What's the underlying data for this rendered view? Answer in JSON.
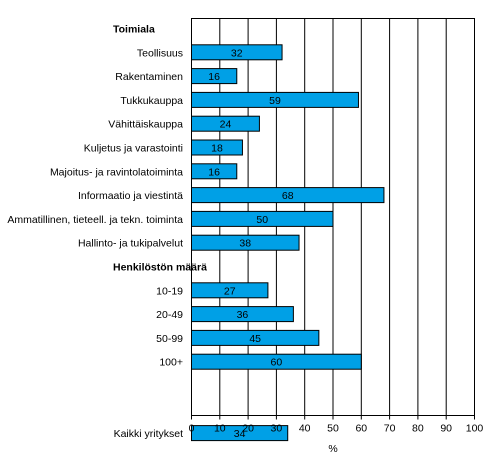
{
  "chart_data": {
    "type": "bar",
    "orientation": "horizontal",
    "xlabel": "%",
    "xlim": [
      0,
      100
    ],
    "xticks": [
      0,
      10,
      20,
      30,
      40,
      50,
      60,
      70,
      80,
      90,
      100
    ],
    "grid": "vertical lines",
    "bar_color": "#00a0e6",
    "groups": [
      {
        "header": "Toimiala",
        "categories": [
          "Teollisuus",
          "Rakentaminen",
          "Tukkukauppa",
          "Vähittäiskauppa",
          "Kuljetus ja varastointi",
          "Majoitus- ja ravintolatoiminta",
          "Informaatio ja viestintä",
          "Ammatillinen, tieteell. ja tekn. toiminta",
          "Hallinto- ja tukipalvelut"
        ],
        "values": [
          32,
          16,
          59,
          24,
          18,
          16,
          68,
          50,
          38
        ]
      },
      {
        "header": "Henkilöstön määrä",
        "categories": [
          "10-19",
          "20-49",
          "50-99",
          "100+"
        ],
        "values": [
          27,
          36,
          45,
          60
        ]
      },
      {
        "header": "",
        "categories": [
          "Kaikki yritykset"
        ],
        "values": [
          34
        ]
      }
    ]
  }
}
